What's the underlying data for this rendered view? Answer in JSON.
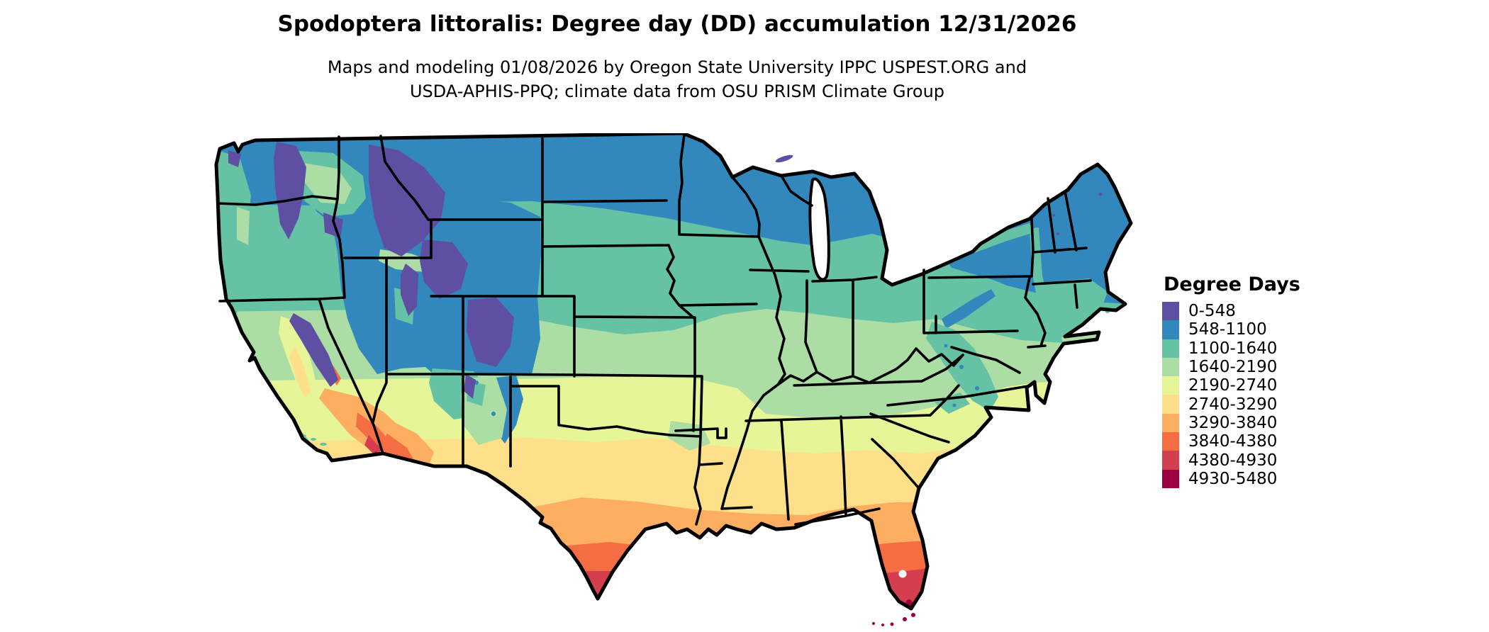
{
  "header": {
    "title": "Spodoptera littoralis: Degree day (DD) accumulation 12/31/2026",
    "subtitle_line1": "Maps and modeling 01/08/2026 by Oregon State University IPPC USPEST.ORG and",
    "subtitle_line2": "USDA-APHIS-PPQ; climate data from OSU PRISM Climate Group"
  },
  "legend": {
    "title": "Degree Days",
    "items": [
      {
        "label": "0-548",
        "color": "#5e4fa2"
      },
      {
        "label": "548-1100",
        "color": "#3288bd"
      },
      {
        "label": "1100-1640",
        "color": "#66c2a5"
      },
      {
        "label": "1640-2190",
        "color": "#abdda4"
      },
      {
        "label": "2190-2740",
        "color": "#e6f598"
      },
      {
        "label": "2740-3290",
        "color": "#fee08b"
      },
      {
        "label": "3290-3840",
        "color": "#fdae61"
      },
      {
        "label": "3840-4380",
        "color": "#f46d43"
      },
      {
        "label": "4380-4930",
        "color": "#d53e4f"
      },
      {
        "label": "4930-5480",
        "color": "#9e0142"
      }
    ]
  },
  "chart_data": {
    "type": "choropleth-map",
    "title": "Spodoptera littoralis: Degree day (DD) accumulation 12/31/2026",
    "region": "Continental United States with state boundaries",
    "species": "Spodoptera littoralis",
    "variable": "Degree day (DD) accumulation",
    "accumulation_date": "12/31/2026",
    "model_date": "01/08/2026",
    "data_sources": [
      "Oregon State University IPPC USPEST.ORG",
      "USDA-APHIS-PPQ",
      "OSU PRISM Climate Group"
    ],
    "unit": "degree days",
    "scale_min": 0,
    "scale_max": 5480,
    "legend_title": "Degree Days",
    "legend_position": "right",
    "classes": [
      {
        "range": "0-548",
        "min": 0,
        "max": 548,
        "color": "#5e4fa2"
      },
      {
        "range": "548-1100",
        "min": 548,
        "max": 1100,
        "color": "#3288bd"
      },
      {
        "range": "1100-1640",
        "min": 1100,
        "max": 1640,
        "color": "#66c2a5"
      },
      {
        "range": "1640-2190",
        "min": 1640,
        "max": 2190,
        "color": "#abdda4"
      },
      {
        "range": "2190-2740",
        "min": 2190,
        "max": 2740,
        "color": "#e6f598"
      },
      {
        "range": "2740-3290",
        "min": 2740,
        "max": 3290,
        "color": "#fee08b"
      },
      {
        "range": "3290-3840",
        "min": 3290,
        "max": 3840,
        "color": "#fdae61"
      },
      {
        "range": "3840-4380",
        "min": 3840,
        "max": 4380,
        "color": "#f46d43"
      },
      {
        "range": "4380-4930",
        "min": 4380,
        "max": 4930,
        "color": "#d53e4f"
      },
      {
        "range": "4930-5480",
        "min": 4930,
        "max": 5480,
        "color": "#9e0142"
      }
    ],
    "spatial_pattern": {
      "0-548": "High mountains: North Cascades, Idaho/Montana Rockies, Yellowstone/Wind River, Colorado Rockies, Sierra Nevada, northern New England peaks",
      "548-1100": "Northern tier: Washington-Montana-Dakotas-Minnesota-Wisconsin-northern Michigan, Great Basin/Wyoming, upstate New York and New England",
      "1100-1640": "Pacific coast, Columbia Basin, Nebraska-Iowa, southern Michigan-Ohio-Pennsylvania, Appalachians, southern New England",
      "1640-2190": "Kansas-Missouri, Ohio Valley, Kentucky, Virginia, California coast valleys",
      "2190-2740": "Oklahoma-north Texas, Tennessee, Carolinas piedmont, California Central Valley",
      "2740-3290": "Central Texas, Arkansas-Mississippi-Alabama-Georgia, coastal Carolinas",
      "3290-3840": "Gulf Coast, south Texas, north Florida, Mojave/Sonoran desert margins",
      "3840-4380": "Deep south Texas, central Florida, Phoenix/Mojave deserts",
      "4380-4930": "Rio Grande Valley tip of Texas, south Florida, lower Colorado River valley",
      "4930-5480": "Florida Keys and extreme southern tips, hottest desert valleys"
    }
  }
}
